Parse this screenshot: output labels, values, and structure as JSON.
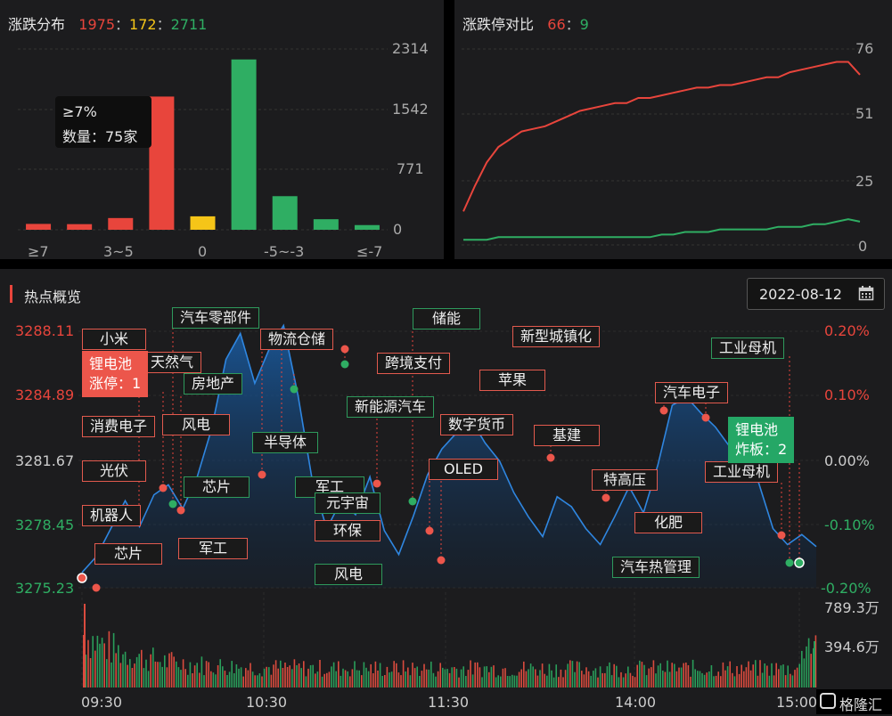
{
  "dist_panel": {
    "title": "涨跌分布",
    "up": "1975",
    "flat": "172",
    "down": "2711",
    "sep1": "：",
    "sep2": "：",
    "y_ticks": [
      "2314",
      "1542",
      "771",
      "0"
    ],
    "x_labels": [
      "≥7",
      "3~5",
      "0",
      "-5~-3",
      "≤-7"
    ],
    "tooltip": {
      "line1": "≥7%",
      "line2": "数量：75家"
    }
  },
  "limit_panel": {
    "title": "涨跌停对比",
    "up": "66",
    "sep": "：",
    "down": "9",
    "y_ticks": [
      "76",
      "51",
      "25",
      "0"
    ]
  },
  "hot_panel": {
    "title": "热点概览",
    "date": "2022-08-12",
    "calendar_icon": "calendar-icon",
    "left_ticks": [
      "3288.11",
      "3284.89",
      "3281.67",
      "3278.45",
      "3275.23"
    ],
    "right_ticks": [
      "0.20%",
      "0.10%",
      "0.00%",
      "-0.10%",
      "-0.20%"
    ],
    "vol_ticks": [
      "789.3万",
      "394.6万"
    ],
    "time_labels": [
      "09:30",
      "10:30",
      "11:30",
      "14:00",
      "15:00"
    ],
    "watermark": "格隆汇",
    "highlight_up": {
      "line1": "锂电池",
      "line2": "涨停：1"
    },
    "highlight_down": {
      "line1": "锂电池",
      "line2": "炸板：2"
    },
    "tags": [
      {
        "text": "小米",
        "c": "red"
      },
      {
        "text": "天然气",
        "c": "red"
      },
      {
        "text": "房地产",
        "c": "green"
      },
      {
        "text": "消费电子",
        "c": "red"
      },
      {
        "text": "风电",
        "c": "red"
      },
      {
        "text": "光伏",
        "c": "red"
      },
      {
        "text": "芯片",
        "c": "green"
      },
      {
        "text": "机器人",
        "c": "red"
      },
      {
        "text": "芯片",
        "c": "red"
      },
      {
        "text": "军工",
        "c": "red"
      },
      {
        "text": "汽车零部件",
        "c": "green"
      },
      {
        "text": "物流仓储",
        "c": "red"
      },
      {
        "text": "半导体",
        "c": "green"
      },
      {
        "text": "军工",
        "c": "green"
      },
      {
        "text": "元宇宙",
        "c": "green"
      },
      {
        "text": "环保",
        "c": "red"
      },
      {
        "text": "风电",
        "c": "green"
      },
      {
        "text": "跨境支付",
        "c": "red"
      },
      {
        "text": "新能源汽车",
        "c": "green"
      },
      {
        "text": "储能",
        "c": "green"
      },
      {
        "text": "数字货币",
        "c": "red"
      },
      {
        "text": "OLED",
        "c": "red"
      },
      {
        "text": "苹果",
        "c": "red"
      },
      {
        "text": "新型城镇化",
        "c": "red"
      },
      {
        "text": "基建",
        "c": "red"
      },
      {
        "text": "特高压",
        "c": "red"
      },
      {
        "text": "化肥",
        "c": "red"
      },
      {
        "text": "汽车热管理",
        "c": "green"
      },
      {
        "text": "汽车电子",
        "c": "red"
      },
      {
        "text": "工业母机",
        "c": "green"
      },
      {
        "text": "工业母机",
        "c": "red"
      }
    ]
  },
  "chart_data": [
    {
      "type": "bar",
      "categories": [
        "≥7",
        "",
        "3~5",
        "",
        "0",
        "",
        "-5~-3",
        "",
        "≤-7"
      ],
      "values": [
        75,
        72,
        150,
        1705,
        172,
        2180,
        430,
        135,
        60
      ],
      "colors": [
        "#e8453c",
        "#e8453c",
        "#e8453c",
        "#e8453c",
        "#f5c518",
        "#2fae63",
        "#2fae63",
        "#2fae63",
        "#2fae63"
      ],
      "ylim": [
        0,
        2314
      ]
    },
    {
      "type": "line",
      "series": [
        {
          "values": [
            13,
            23,
            32,
            38,
            41,
            44,
            45,
            46,
            48,
            50,
            52,
            53,
            54,
            55,
            55,
            57,
            57,
            58,
            59,
            60,
            61,
            61,
            62,
            62,
            63,
            64,
            65,
            65,
            67,
            68,
            69,
            70,
            71,
            71,
            66
          ]
        },
        {
          "values": [
            2,
            2,
            2,
            3,
            3,
            3,
            3,
            3,
            3,
            3,
            3,
            3,
            3,
            3,
            3,
            3,
            3,
            4,
            4,
            5,
            5,
            5,
            6,
            6,
            6,
            6,
            6,
            7,
            7,
            7,
            8,
            8,
            9,
            10,
            9
          ]
        }
      ],
      "colors": [
        "#e8453c",
        "#2fae63"
      ],
      "ylim": [
        0,
        76
      ]
    },
    {
      "type": "area",
      "values": [
        3276.0,
        3276.8,
        3278.2,
        3279.6,
        3278.3,
        3279.9,
        3280.4,
        3279.2,
        3280.8,
        3283.2,
        3286.7,
        3288.0,
        3285.5,
        3287.2,
        3288.4,
        3284.9,
        3280.6,
        3278.2,
        3279.6,
        3278.9,
        3280.8,
        3278.1,
        3276.9,
        3278.8,
        3280.9,
        3282.2,
        3283.0,
        3283.7,
        3282.5,
        3281.6,
        3280.0,
        3278.8,
        3277.8,
        3279.8,
        3279.3,
        3278.2,
        3277.4,
        3278.8,
        3280.3,
        3279.0,
        3281.4,
        3284.4,
        3284.8,
        3284.0,
        3283.3,
        3282.3,
        3281.6,
        3280.5,
        3278.2,
        3277.4,
        3277.9,
        3277.3
      ],
      "ylim": [
        3275.23,
        3288.11
      ]
    }
  ]
}
